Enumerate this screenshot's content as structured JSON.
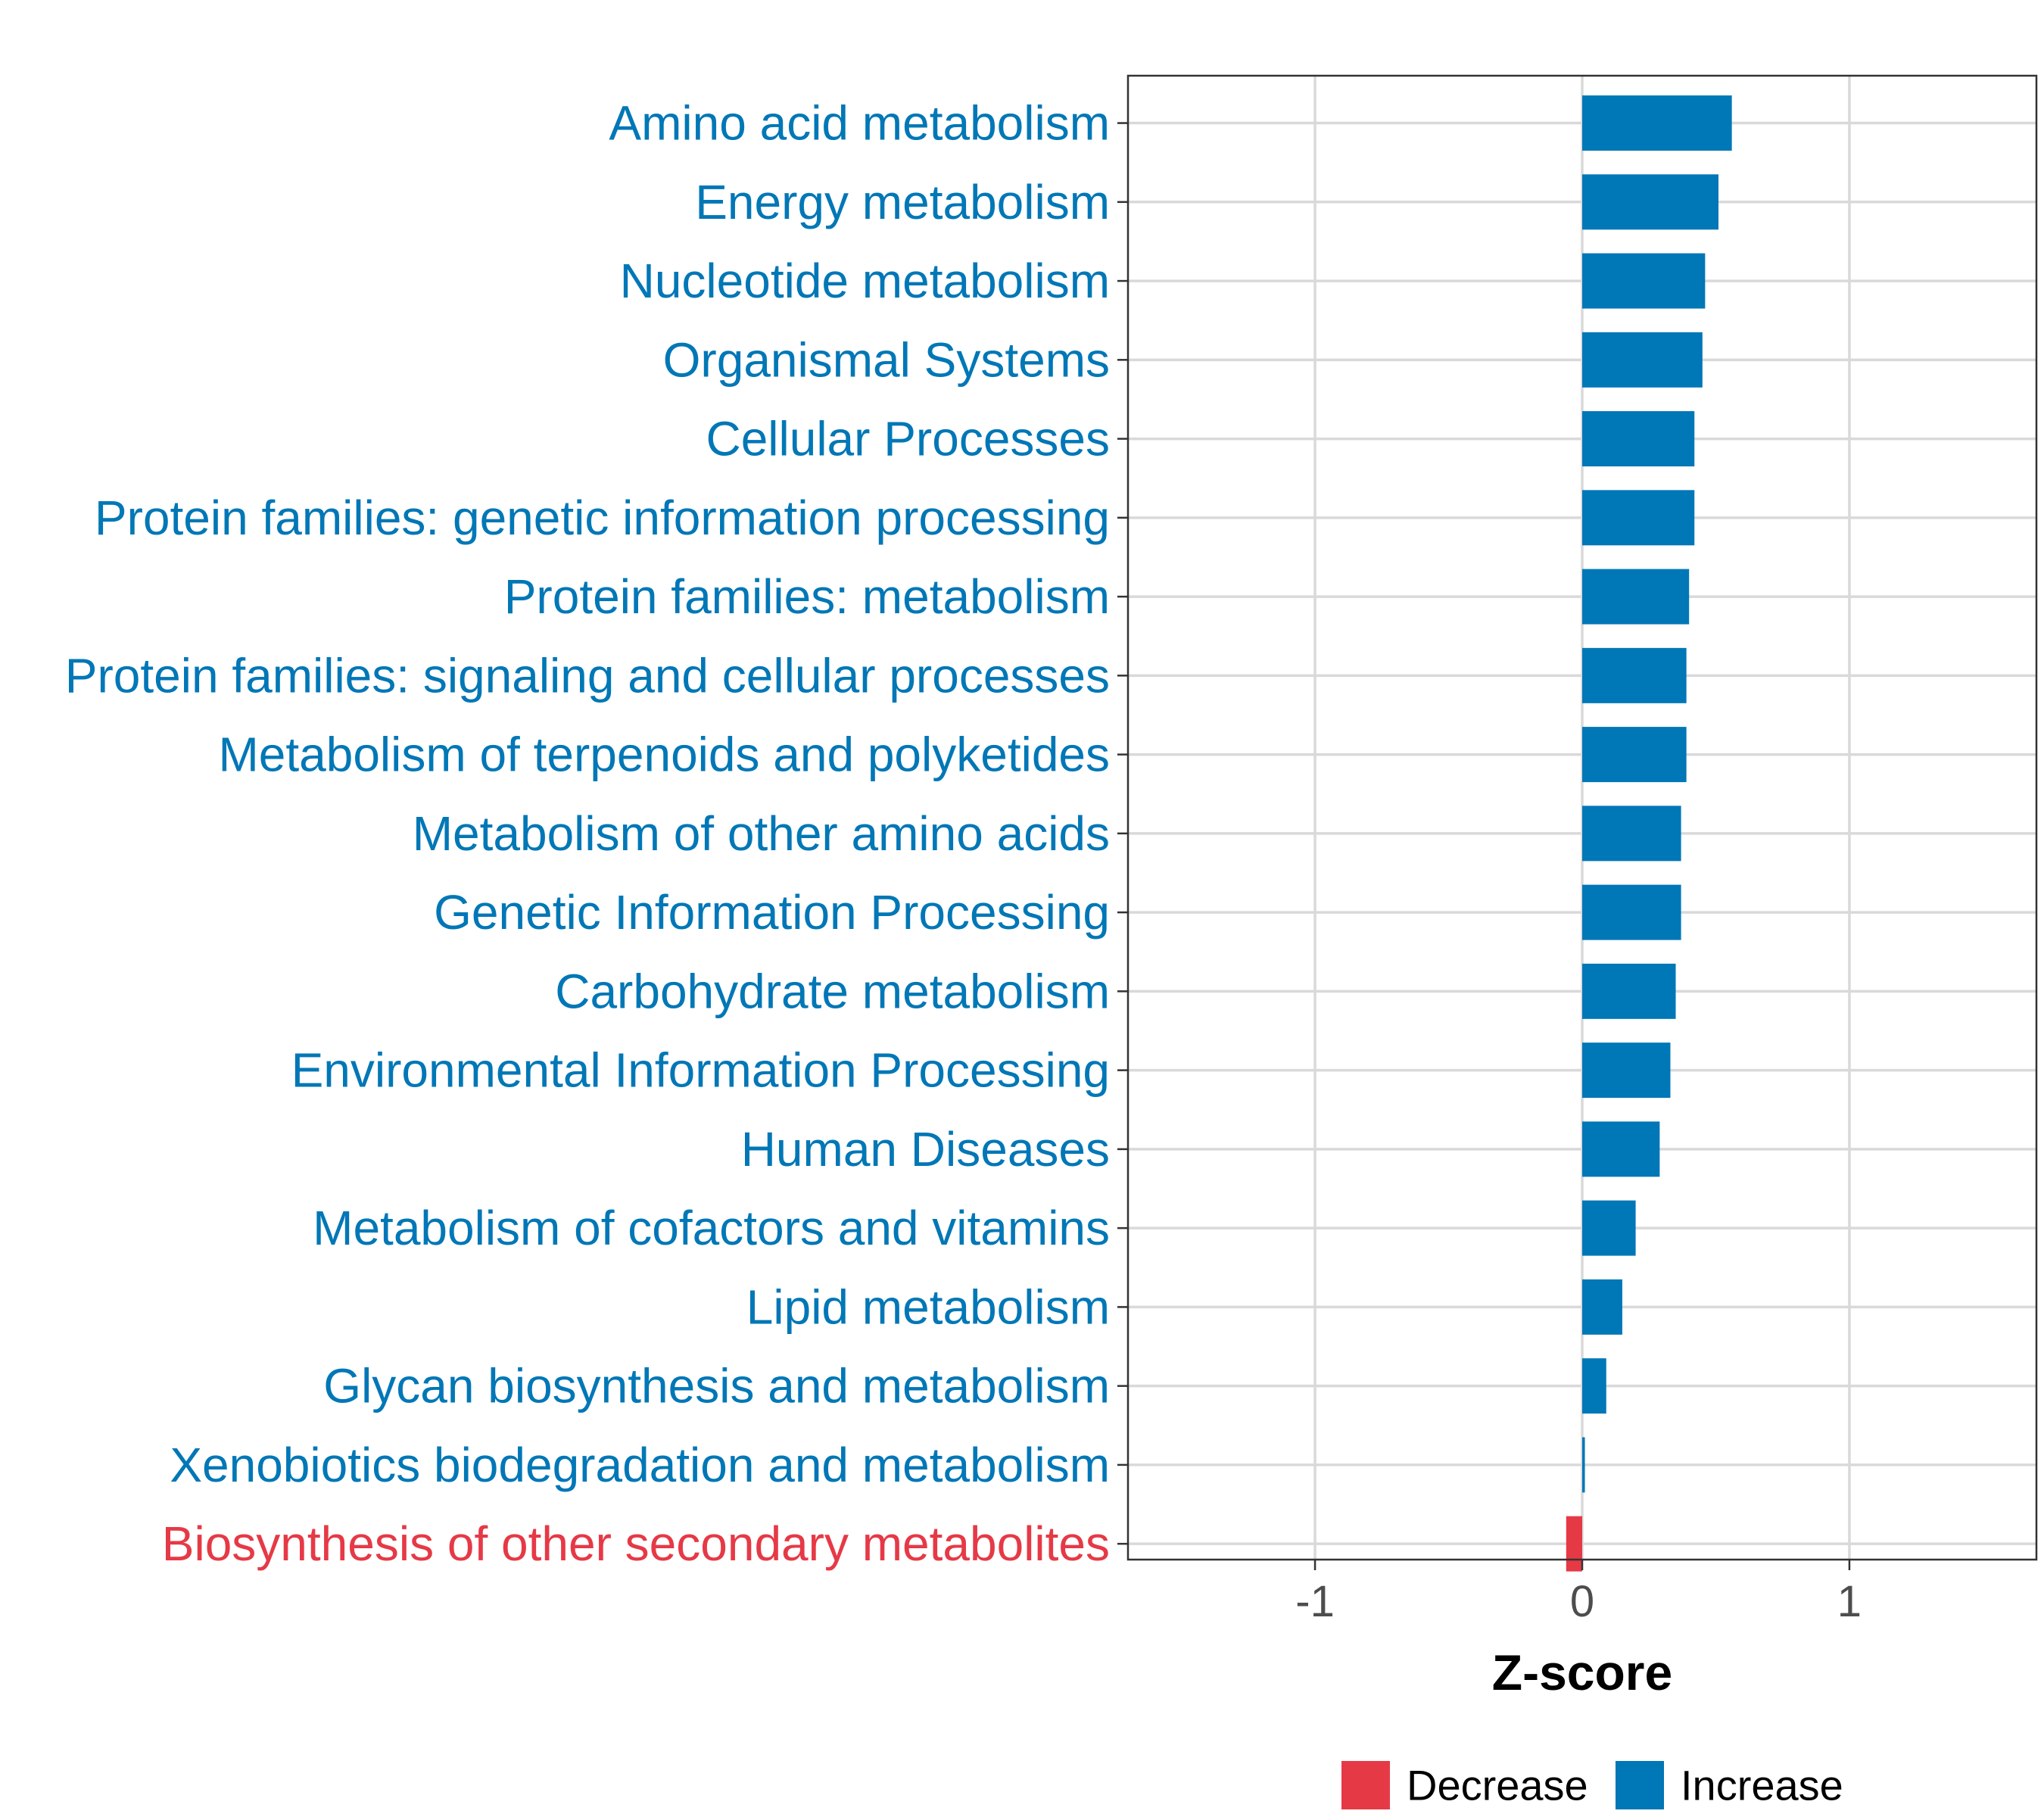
{
  "chart_data": {
    "type": "bar",
    "orientation": "horizontal",
    "title": "",
    "xlabel": "Z-score",
    "ylabel": "",
    "xlim": [
      -1.7,
      1.7
    ],
    "xticks": [
      -1,
      0,
      1
    ],
    "grid": true,
    "legend_position": "bottom",
    "categories": [
      "Amino acid metabolism",
      "Energy metabolism",
      "Nucleotide metabolism",
      "Organismal Systems",
      "Cellular Processes",
      "Protein families: genetic information processing",
      "Protein families: metabolism",
      "Protein families: signaling and cellular processes",
      "Metabolism of terpenoids and polyketides",
      "Metabolism of other amino acids",
      "Genetic Information Processing",
      "Carbohydrate metabolism",
      "Environmental Information Processing",
      "Human Diseases",
      "Metabolism of cofactors and vitamins",
      "Lipid metabolism",
      "Glycan biosynthesis and metabolism",
      "Xenobiotics biodegradation and metabolism",
      "Biosynthesis of other secondary metabolites"
    ],
    "values": [
      0.56,
      0.51,
      0.46,
      0.45,
      0.42,
      0.42,
      0.4,
      0.39,
      0.39,
      0.37,
      0.37,
      0.35,
      0.33,
      0.29,
      0.2,
      0.15,
      0.09,
      0.01,
      -0.06
    ],
    "groups": [
      "Increase",
      "Increase",
      "Increase",
      "Increase",
      "Increase",
      "Increase",
      "Increase",
      "Increase",
      "Increase",
      "Increase",
      "Increase",
      "Increase",
      "Increase",
      "Increase",
      "Increase",
      "Increase",
      "Increase",
      "Increase",
      "Decrease"
    ],
    "legend": [
      {
        "name": "Decrease",
        "color": "#e63946"
      },
      {
        "name": "Increase",
        "color": "#0077b6"
      }
    ]
  }
}
